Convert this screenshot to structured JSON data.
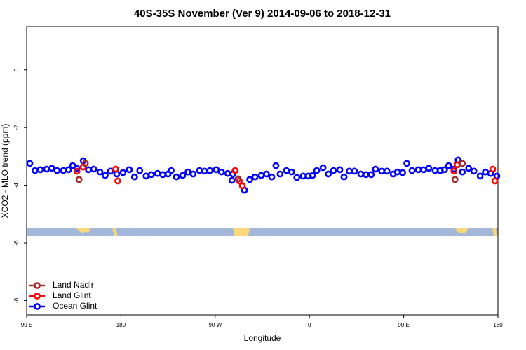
{
  "chart_data": {
    "type": "scatter",
    "title": "40S-35S November (Ver 9)   2014-09-06 to 2018-12-31",
    "x_label": "Longitude",
    "y_label": "XCO2 - MLO trend (ppm)",
    "xlim": [
      90,
      540
    ],
    "ylim": [
      -8.5,
      1.5
    ],
    "xticks": [
      {
        "value": 90,
        "label": "90 E"
      },
      {
        "value": 180,
        "label": "180"
      },
      {
        "value": 270,
        "label": "90 W"
      },
      {
        "value": 360,
        "label": "0"
      },
      {
        "value": 450,
        "label": "90 E"
      },
      {
        "value": 540,
        "label": "180"
      }
    ],
    "yticks": [
      0,
      -2,
      -4,
      -6,
      -8
    ],
    "legend": "bottom-left",
    "series": [
      {
        "name": "Land Nadir",
        "color": "#a52a2a",
        "x": [
          140,
          146,
          292,
          499,
          506
        ],
        "values": [
          -3.8,
          -3.24,
          -3.78,
          -3.8,
          -3.24
        ]
      },
      {
        "name": "Land Glint",
        "color": "#ff0000",
        "x": [
          138,
          144,
          175,
          177,
          289,
          293,
          296,
          498,
          501,
          535,
          537
        ],
        "values": [
          -3.51,
          -3.37,
          -3.44,
          -3.85,
          -3.49,
          -3.85,
          -4.02,
          -3.51,
          -3.29,
          -3.44,
          -3.85
        ]
      },
      {
        "name": "Ocean Glint",
        "color": "#0000ff",
        "x": [
          93,
          98,
          103,
          109,
          114,
          119,
          125,
          130,
          134,
          138,
          144,
          149,
          154,
          160,
          165,
          170,
          176,
          182,
          188,
          193,
          198,
          204,
          209,
          215,
          220,
          225,
          228,
          233,
          239,
          244,
          249,
          255,
          260,
          265,
          271,
          276,
          282,
          286,
          287,
          292,
          298,
          303,
          308,
          314,
          319,
          324,
          328,
          332,
          338,
          343,
          348,
          354,
          359,
          363,
          367,
          373,
          378,
          383,
          389,
          393,
          398,
          403,
          409,
          414,
          419,
          423,
          429,
          434,
          440,
          444,
          449,
          453,
          458,
          464,
          469,
          474,
          480,
          485,
          489,
          493,
          498,
          502,
          506,
          512,
          517,
          523,
          528,
          533,
          539
        ],
        "values": [
          -3.24,
          -3.49,
          -3.46,
          -3.44,
          -3.41,
          -3.49,
          -3.49,
          -3.46,
          -3.32,
          -3.41,
          -3.15,
          -3.46,
          -3.44,
          -3.54,
          -3.66,
          -3.51,
          -3.61,
          -3.56,
          -3.46,
          -3.71,
          -3.49,
          -3.68,
          -3.63,
          -3.59,
          -3.63,
          -3.61,
          -3.49,
          -3.71,
          -3.66,
          -3.54,
          -3.61,
          -3.49,
          -3.51,
          -3.49,
          -3.46,
          -3.54,
          -3.59,
          -3.83,
          -3.61,
          -3.78,
          -4.17,
          -3.8,
          -3.71,
          -3.66,
          -3.61,
          -3.71,
          -3.32,
          -3.61,
          -3.49,
          -3.54,
          -3.73,
          -3.68,
          -3.68,
          -3.66,
          -3.49,
          -3.39,
          -3.61,
          -3.49,
          -3.46,
          -3.71,
          -3.51,
          -3.51,
          -3.61,
          -3.63,
          -3.63,
          -3.44,
          -3.51,
          -3.51,
          -3.61,
          -3.54,
          -3.56,
          -3.24,
          -3.49,
          -3.46,
          -3.46,
          -3.41,
          -3.49,
          -3.49,
          -3.46,
          -3.32,
          -3.44,
          -3.12,
          -3.54,
          -3.41,
          -3.51,
          -3.68,
          -3.54,
          -3.59,
          -3.68
        ]
      }
    ]
  }
}
